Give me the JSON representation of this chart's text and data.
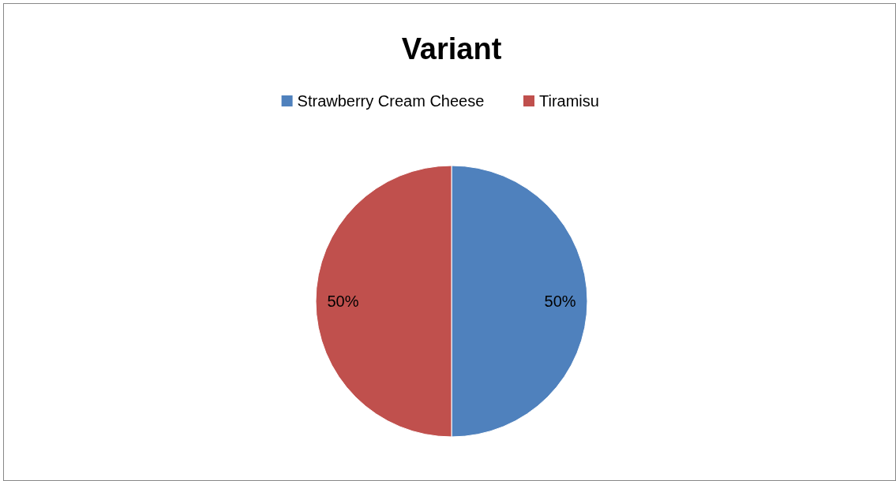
{
  "chart_data": {
    "type": "pie",
    "title": "Variant",
    "categories": [
      "Strawberry Cream Cheese",
      "Tiramisu"
    ],
    "values": [
      50,
      50
    ],
    "colors": [
      "#4f81bd",
      "#c0504d"
    ],
    "value_labels": [
      "50%",
      "50%"
    ],
    "legend": "top"
  }
}
